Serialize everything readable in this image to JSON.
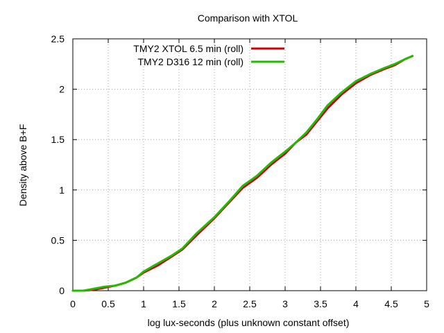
{
  "chart_data": {
    "type": "line",
    "title": "Comparison with XTOL",
    "xlabel": "log lux-seconds (plus unknown constant offset)",
    "ylabel": "Density above B+F",
    "xlim": [
      0,
      5
    ],
    "ylim": [
      0,
      2.5
    ],
    "xticks": [
      "0",
      "0.5",
      "1",
      "1.5",
      "2",
      "2.5",
      "3",
      "3.5",
      "4",
      "4.5",
      "5"
    ],
    "yticks": [
      "0",
      "0.5",
      "1",
      "1.5",
      "2",
      "2.5"
    ],
    "grid": true,
    "legend_position": "top-left",
    "series": [
      {
        "name": "TMY2 XTOL 6.5 min (roll)",
        "color": "#cc0000",
        "points": [
          [
            0.0,
            0.0
          ],
          [
            0.15,
            0.0
          ],
          [
            0.3,
            0.01
          ],
          [
            0.45,
            0.03
          ],
          [
            0.6,
            0.05
          ],
          [
            0.75,
            0.08
          ],
          [
            0.9,
            0.13
          ],
          [
            1.0,
            0.18
          ],
          [
            1.2,
            0.25
          ],
          [
            1.4,
            0.34
          ],
          [
            1.55,
            0.41
          ],
          [
            1.75,
            0.55
          ],
          [
            2.0,
            0.72
          ],
          [
            2.2,
            0.87
          ],
          [
            2.4,
            1.02
          ],
          [
            2.6,
            1.12
          ],
          [
            2.8,
            1.25
          ],
          [
            3.0,
            1.36
          ],
          [
            3.15,
            1.47
          ],
          [
            3.3,
            1.55
          ],
          [
            3.45,
            1.68
          ],
          [
            3.6,
            1.81
          ],
          [
            3.8,
            1.95
          ],
          [
            4.0,
            2.06
          ],
          [
            4.2,
            2.14
          ],
          [
            4.4,
            2.2
          ],
          [
            4.55,
            2.24
          ],
          [
            4.7,
            2.3
          ],
          [
            4.8,
            2.33
          ]
        ]
      },
      {
        "name": "TMY2 D316 12 min (roll)",
        "color": "#22bb00",
        "points": [
          [
            0.0,
            0.0
          ],
          [
            0.15,
            0.0
          ],
          [
            0.3,
            0.02
          ],
          [
            0.45,
            0.04
          ],
          [
            0.6,
            0.05
          ],
          [
            0.75,
            0.08
          ],
          [
            0.9,
            0.13
          ],
          [
            1.0,
            0.19
          ],
          [
            1.2,
            0.27
          ],
          [
            1.4,
            0.35
          ],
          [
            1.55,
            0.42
          ],
          [
            1.75,
            0.57
          ],
          [
            2.0,
            0.73
          ],
          [
            2.2,
            0.88
          ],
          [
            2.4,
            1.04
          ],
          [
            2.6,
            1.14
          ],
          [
            2.8,
            1.27
          ],
          [
            3.0,
            1.38
          ],
          [
            3.15,
            1.47
          ],
          [
            3.3,
            1.57
          ],
          [
            3.45,
            1.7
          ],
          [
            3.6,
            1.84
          ],
          [
            3.8,
            1.97
          ],
          [
            4.0,
            2.08
          ],
          [
            4.2,
            2.15
          ],
          [
            4.4,
            2.21
          ],
          [
            4.55,
            2.25
          ],
          [
            4.7,
            2.3
          ],
          [
            4.8,
            2.33
          ]
        ]
      }
    ]
  }
}
